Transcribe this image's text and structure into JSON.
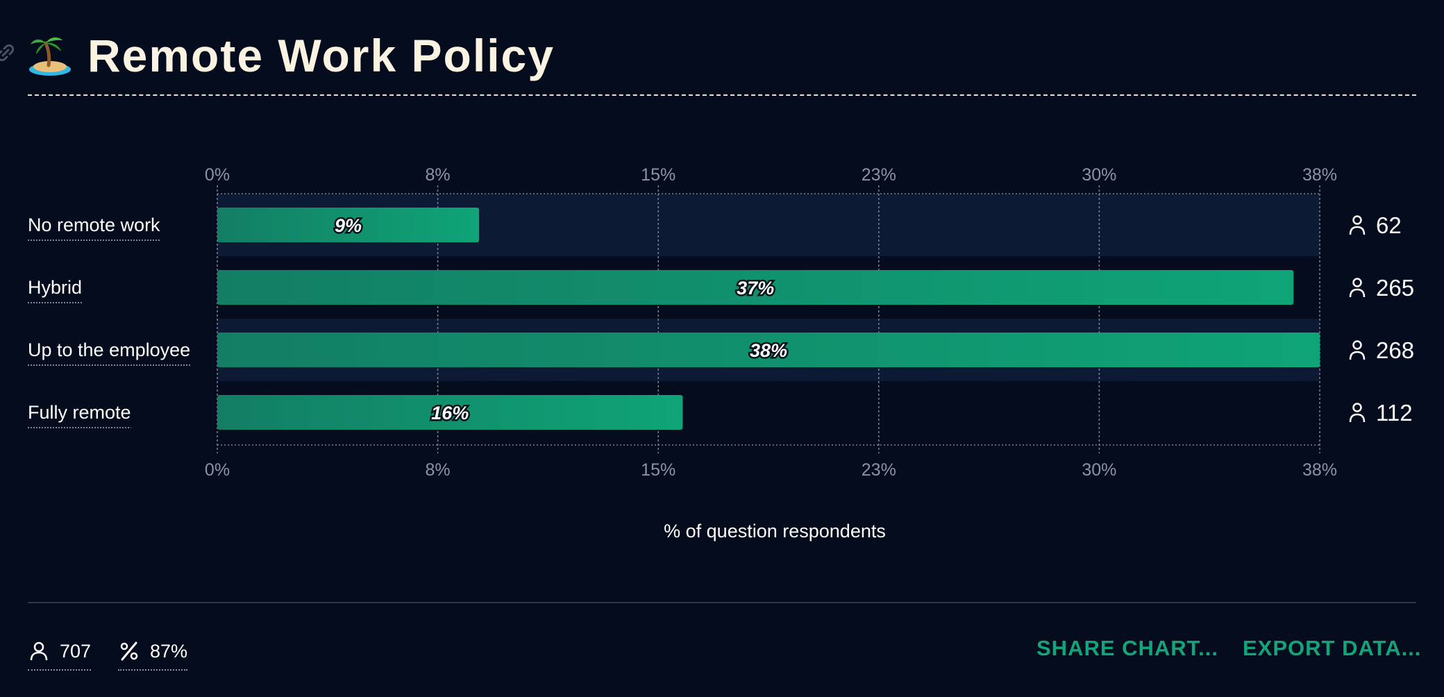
{
  "header": {
    "title": "Remote Work Policy",
    "emoji_icon": "palm-island-icon",
    "link_icon": "link-icon"
  },
  "chart_data": {
    "type": "bar",
    "orientation": "horizontal",
    "categories": [
      "No remote work",
      "Hybrid",
      "Up to the employee",
      "Fully remote"
    ],
    "values": [
      9,
      37,
      38,
      16
    ],
    "value_labels": [
      "9%",
      "37%",
      "38%",
      "16%"
    ],
    "counts": [
      62,
      265,
      268,
      112
    ],
    "xlim": [
      0,
      37.9
    ],
    "tick_labels": [
      "0%",
      "8%",
      "15%",
      "23%",
      "30%",
      "38%"
    ],
    "xlabel": "% of question respondents",
    "ylabel": "",
    "grid": true,
    "bar_color_start": "#137e64",
    "bar_color_end": "#0fa477"
  },
  "footer": {
    "respondents": "707",
    "percent": "87%",
    "share_label": "SHARE CHART...",
    "export_label": "EXPORT DATA..."
  },
  "colors": {
    "background": "#040c1e",
    "accent": "#12a57a",
    "row_band": "#0d1a33"
  }
}
